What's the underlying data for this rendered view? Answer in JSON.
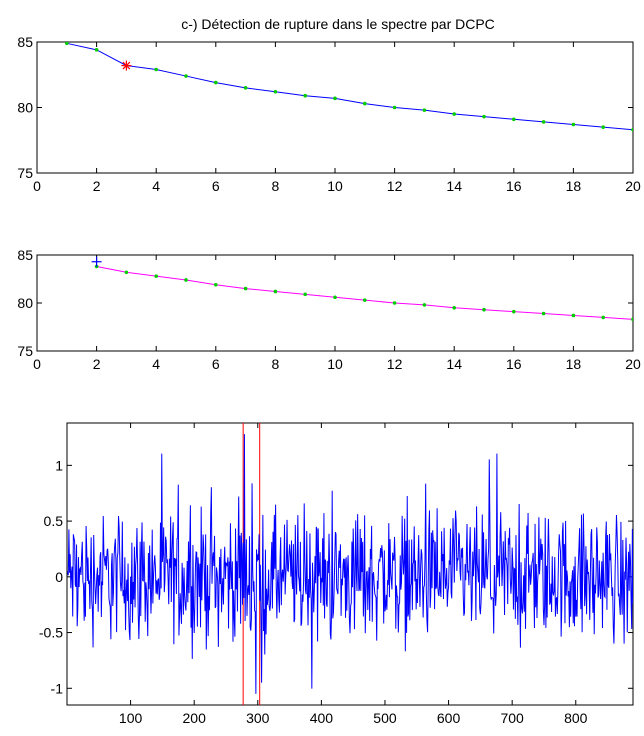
{
  "figure": {
    "title": "c-) Détection de rupture dans le spectre par DCPC"
  },
  "chart_data": [
    {
      "type": "line",
      "title": "c-) Détection de rupture dans le spectre par DCPC",
      "xlim": [
        0,
        20
      ],
      "ylim": [
        75,
        85
      ],
      "xticks": [
        0,
        2,
        4,
        6,
        8,
        10,
        12,
        14,
        16,
        18,
        20
      ],
      "yticks": [
        75,
        80,
        85
      ],
      "grid": false,
      "series": [
        {
          "color": "#0000ff",
          "marker_color": "#00cc00",
          "x": [
            1,
            2,
            3,
            4,
            5,
            6,
            7,
            8,
            9,
            10,
            11,
            12,
            13,
            14,
            15,
            16,
            17,
            18,
            19,
            20
          ],
          "y": [
            84.9,
            84.4,
            83.2,
            82.9,
            82.4,
            81.9,
            81.5,
            81.2,
            80.9,
            80.7,
            80.3,
            80.0,
            79.8,
            79.5,
            79.3,
            79.1,
            78.9,
            78.7,
            78.5,
            78.3
          ]
        }
      ],
      "annotations": [
        {
          "marker": "asterisk",
          "color": "#ff0000",
          "x": 3,
          "y": 83.2
        }
      ]
    },
    {
      "type": "line",
      "xlim": [
        0,
        20
      ],
      "ylim": [
        75,
        85
      ],
      "xticks": [
        0,
        2,
        4,
        6,
        8,
        10,
        12,
        14,
        16,
        18,
        20
      ],
      "yticks": [
        75,
        80,
        85
      ],
      "grid": false,
      "series": [
        {
          "color": "#ff00ff",
          "marker_color": "#00cc00",
          "x": [
            2,
            3,
            4,
            5,
            6,
            7,
            8,
            9,
            10,
            11,
            12,
            13,
            14,
            15,
            16,
            17,
            18,
            19,
            20
          ],
          "y": [
            83.8,
            83.2,
            82.8,
            82.4,
            81.9,
            81.5,
            81.2,
            80.9,
            80.6,
            80.3,
            80.0,
            79.8,
            79.5,
            79.3,
            79.1,
            78.9,
            78.7,
            78.5,
            78.3
          ]
        }
      ],
      "annotations": [
        {
          "marker": "plus",
          "color": "#0000ff",
          "x": 2,
          "y": 84.3
        }
      ]
    },
    {
      "type": "line",
      "xlim": [
        0,
        890
      ],
      "ylim": [
        -1.15,
        1.38
      ],
      "xticks": [
        100,
        200,
        300,
        400,
        500,
        600,
        700,
        800
      ],
      "yticks": [
        -1,
        -0.5,
        0,
        0.5,
        1
      ],
      "grid": false,
      "series": [
        {
          "color": "#0000ff",
          "n_points": 890,
          "value_range": [
            -1.1,
            1.3
          ]
        }
      ],
      "vertical_lines": [
        {
          "color": "#ff0000",
          "x": 277
        },
        {
          "color": "#ff0000",
          "x": 303
        }
      ]
    }
  ]
}
